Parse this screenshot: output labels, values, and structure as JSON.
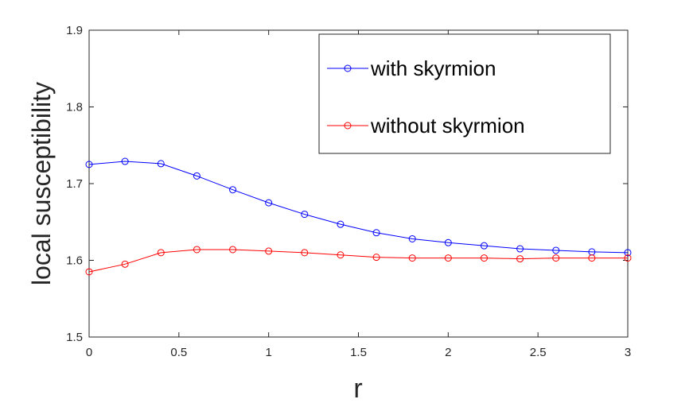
{
  "chart_data": {
    "type": "line",
    "title": "",
    "xlabel": "r",
    "ylabel": "local susceptibility",
    "xlim": [
      0,
      3
    ],
    "ylim": [
      1.5,
      1.9
    ],
    "xticks": [
      0,
      0.5,
      1,
      1.5,
      2,
      2.5,
      3
    ],
    "xtick_labels": [
      "0",
      "0.5",
      "1",
      "1.5",
      "2",
      "2.5",
      "3"
    ],
    "yticks": [
      1.5,
      1.6,
      1.7,
      1.8,
      1.9
    ],
    "ytick_labels": [
      "1.5",
      "1.6",
      "1.7",
      "1.8",
      "1.9"
    ],
    "grid": false,
    "legend_position": "top-right",
    "x": [
      0,
      0.2,
      0.4,
      0.6,
      0.8,
      1.0,
      1.2,
      1.4,
      1.6,
      1.8,
      2.0,
      2.2,
      2.4,
      2.6,
      2.8,
      3.0
    ],
    "series": [
      {
        "name": "with skyrmion",
        "color": "#0000ff",
        "marker": "open-circle",
        "values": [
          1.725,
          1.729,
          1.726,
          1.71,
          1.692,
          1.675,
          1.66,
          1.647,
          1.636,
          1.628,
          1.623,
          1.619,
          1.615,
          1.613,
          1.611,
          1.61
        ]
      },
      {
        "name": "without skyrmion",
        "color": "#ff0000",
        "marker": "open-circle",
        "values": [
          1.585,
          1.595,
          1.61,
          1.614,
          1.614,
          1.612,
          1.61,
          1.607,
          1.604,
          1.603,
          1.603,
          1.603,
          1.602,
          1.603,
          1.603,
          1.603
        ]
      }
    ]
  }
}
